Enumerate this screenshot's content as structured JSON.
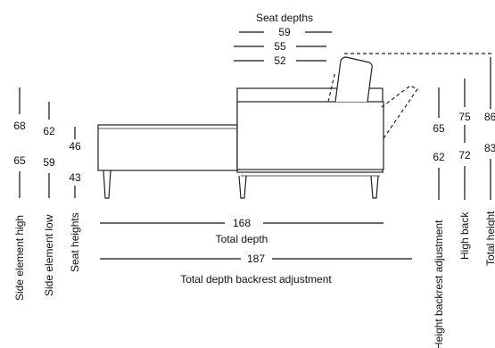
{
  "seat_depths": {
    "title": "Seat depths",
    "values": [
      "59",
      "55",
      "52"
    ]
  },
  "left_dimensions": {
    "side_element_high": {
      "values": [
        "68",
        "65"
      ],
      "label": "Side element high"
    },
    "side_element_low": {
      "values": [
        "62",
        "59"
      ],
      "label": "Side element low"
    },
    "seat_heights": {
      "values": [
        "46",
        "43"
      ],
      "label": "Seat heights"
    }
  },
  "right_dimensions": {
    "height_backrest_adjustment": {
      "values": [
        "65",
        "62"
      ],
      "label": "Height backrest adjustment"
    },
    "high_back": {
      "values": [
        "75",
        "72"
      ],
      "label": "High back"
    },
    "total_height": {
      "values": [
        "86",
        "83"
      ],
      "label": "Total height"
    }
  },
  "bottom_dimensions": {
    "total_depth": {
      "value": "168",
      "label": "Total depth"
    },
    "total_depth_backrest": {
      "value": "187",
      "label": "Total depth backrest adjustment"
    }
  }
}
